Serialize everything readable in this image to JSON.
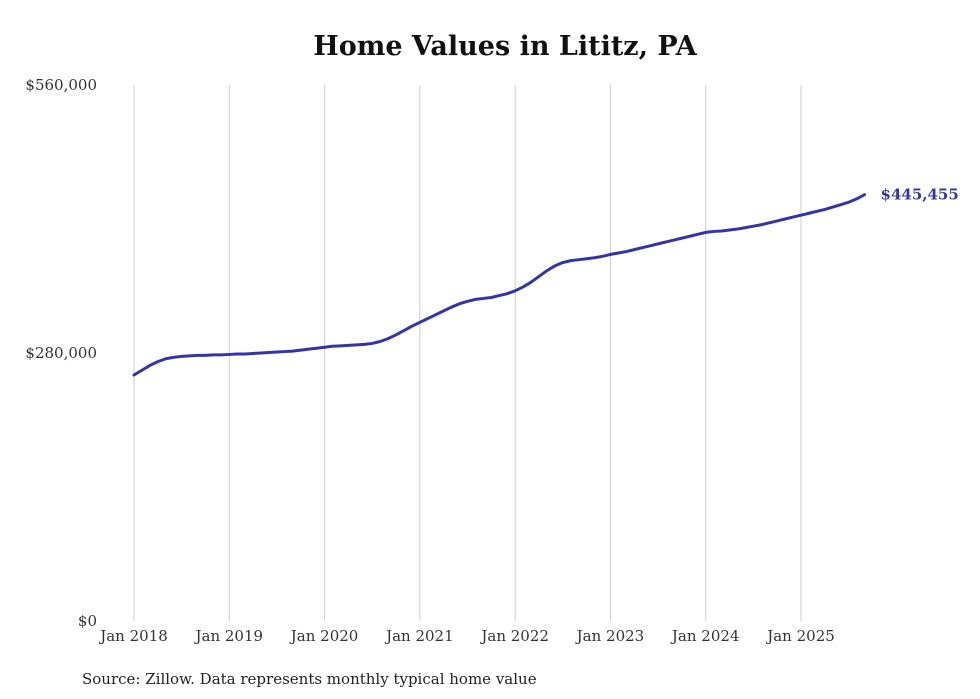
{
  "title": "Home Values in Lititz, PA",
  "source_note": "Source: Zillow. Data represents monthly typical home value",
  "end_label": "$445,455",
  "colors": {
    "line": "#3533a8",
    "end_label": "#3533a8",
    "grid": "#cccccc",
    "title_text": "#111111",
    "axis_text": "#333333",
    "source_text": "#222222",
    "background": "#ffffff"
  },
  "chart_data": {
    "type": "line",
    "title": "Home Values in Lititz, PA",
    "xlabel": "",
    "ylabel": "",
    "ylim": [
      0,
      560000
    ],
    "grid": "vertical",
    "legend": "none",
    "series_name": "Typical home value (monthly)",
    "yticks": [
      {
        "value": 0,
        "label": "$0"
      },
      {
        "value": 280000,
        "label": "$280,000"
      },
      {
        "value": 560000,
        "label": "$560,000"
      }
    ],
    "xticks": [
      {
        "month": "2018-01",
        "label": "Jan 2018"
      },
      {
        "month": "2019-01",
        "label": "Jan 2019"
      },
      {
        "month": "2020-01",
        "label": "Jan 2020"
      },
      {
        "month": "2021-01",
        "label": "Jan 2021"
      },
      {
        "month": "2022-01",
        "label": "Jan 2022"
      },
      {
        "month": "2023-01",
        "label": "Jan 2023"
      },
      {
        "month": "2024-01",
        "label": "Jan 2024"
      },
      {
        "month": "2025-01",
        "label": "Jan 2025"
      }
    ],
    "x": [
      "2018-01",
      "2018-02",
      "2018-03",
      "2018-04",
      "2018-05",
      "2018-06",
      "2018-07",
      "2018-08",
      "2018-09",
      "2018-10",
      "2018-11",
      "2018-12",
      "2019-01",
      "2019-02",
      "2019-03",
      "2019-04",
      "2019-05",
      "2019-06",
      "2019-07",
      "2019-08",
      "2019-09",
      "2019-10",
      "2019-11",
      "2019-12",
      "2020-01",
      "2020-02",
      "2020-03",
      "2020-04",
      "2020-05",
      "2020-06",
      "2020-07",
      "2020-08",
      "2020-09",
      "2020-10",
      "2020-11",
      "2020-12",
      "2021-01",
      "2021-02",
      "2021-03",
      "2021-04",
      "2021-05",
      "2021-06",
      "2021-07",
      "2021-08",
      "2021-09",
      "2021-10",
      "2021-11",
      "2021-12",
      "2022-01",
      "2022-02",
      "2022-03",
      "2022-04",
      "2022-05",
      "2022-06",
      "2022-07",
      "2022-08",
      "2022-09",
      "2022-10",
      "2022-11",
      "2022-12",
      "2023-01",
      "2023-02",
      "2023-03",
      "2023-04",
      "2023-05",
      "2023-06",
      "2023-07",
      "2023-08",
      "2023-09",
      "2023-10",
      "2023-11",
      "2023-12",
      "2024-01",
      "2024-02",
      "2024-03",
      "2024-04",
      "2024-05",
      "2024-06",
      "2024-07",
      "2024-08",
      "2024-09",
      "2024-10",
      "2024-11",
      "2024-12",
      "2025-01",
      "2025-02",
      "2025-03",
      "2025-04",
      "2025-05",
      "2025-06",
      "2025-07",
      "2025-08",
      "2025-09"
    ],
    "values": [
      257000,
      262000,
      267000,
      271000,
      274000,
      275500,
      276500,
      277000,
      277500,
      277500,
      278000,
      278000,
      278500,
      279000,
      279000,
      279500,
      280000,
      280500,
      281000,
      281500,
      282000,
      283000,
      284000,
      285000,
      286000,
      287000,
      287500,
      288000,
      288500,
      289000,
      290000,
      292000,
      295000,
      299000,
      303500,
      308000,
      312000,
      316000,
      320000,
      324000,
      328000,
      331500,
      334000,
      336000,
      337000,
      338000,
      340000,
      342000,
      345000,
      349000,
      354000,
      360000,
      366000,
      371000,
      374500,
      376500,
      377500,
      378500,
      379500,
      381000,
      383000,
      384500,
      386000,
      388000,
      390000,
      392000,
      394000,
      396000,
      398000,
      400000,
      402000,
      404000,
      406000,
      407000,
      407500,
      408500,
      409500,
      411000,
      412500,
      414000,
      416000,
      418000,
      420000,
      422000,
      424000,
      426000,
      428000,
      430000,
      432500,
      435000,
      437500,
      441000,
      445455
    ],
    "last_point": {
      "month": "2025-09",
      "value": 445455,
      "label": "$445,455"
    }
  }
}
